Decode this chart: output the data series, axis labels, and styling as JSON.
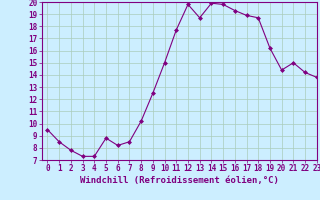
{
  "x": [
    0,
    1,
    2,
    3,
    4,
    5,
    6,
    7,
    8,
    9,
    10,
    11,
    12,
    13,
    14,
    15,
    16,
    17,
    18,
    19,
    20,
    21,
    22,
    23
  ],
  "y": [
    9.5,
    8.5,
    7.8,
    7.3,
    7.3,
    8.8,
    8.2,
    8.5,
    10.2,
    12.5,
    15.0,
    17.7,
    19.8,
    18.7,
    19.9,
    19.8,
    19.3,
    18.9,
    18.7,
    16.2,
    14.4,
    15.0,
    14.2,
    13.8
  ],
  "line_color": "#800080",
  "marker": "D",
  "marker_size": 2,
  "bg_color": "#cceeff",
  "grid_color": "#aaccbb",
  "xlabel": "Windchill (Refroidissement éolien,°C)",
  "ylim": [
    7,
    20
  ],
  "xlim": [
    -0.5,
    23
  ],
  "yticks": [
    7,
    8,
    9,
    10,
    11,
    12,
    13,
    14,
    15,
    16,
    17,
    18,
    19,
    20
  ],
  "xticks": [
    0,
    1,
    2,
    3,
    4,
    5,
    6,
    7,
    8,
    9,
    10,
    11,
    12,
    13,
    14,
    15,
    16,
    17,
    18,
    19,
    20,
    21,
    22,
    23
  ],
  "tick_fontsize": 5.5,
  "xlabel_fontsize": 6.5,
  "axis_color": "#800080"
}
